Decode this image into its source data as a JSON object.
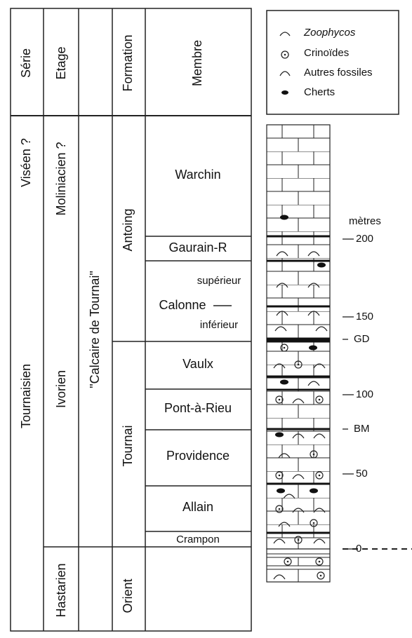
{
  "header": {
    "serie": "Série",
    "etage": "Etage",
    "formation": "Formation",
    "membre": "Membre"
  },
  "serie": [
    "Viséen ?",
    "Tournaisien"
  ],
  "etage": [
    "Moliniacien ?",
    "Ivorien",
    "Hastarien"
  ],
  "group": "\"Calcaire de Tournai\"",
  "formations": [
    "Antoing",
    "Tournai",
    "Orient"
  ],
  "membres": [
    "Warchin",
    "Gaurain-R",
    "supérieur",
    "Calonne",
    "inférieur",
    "Vaulx",
    "Pont-à-Rieu",
    "Providence",
    "Allain",
    "Crampon"
  ],
  "legend": [
    "Zoophycos",
    "Crinoïdes",
    "Autres fossiles",
    "Cherts"
  ],
  "scale": {
    "unit": "mètres",
    "labels": [
      "200",
      "150",
      "GD",
      "100",
      "BM",
      "50",
      "0"
    ]
  }
}
